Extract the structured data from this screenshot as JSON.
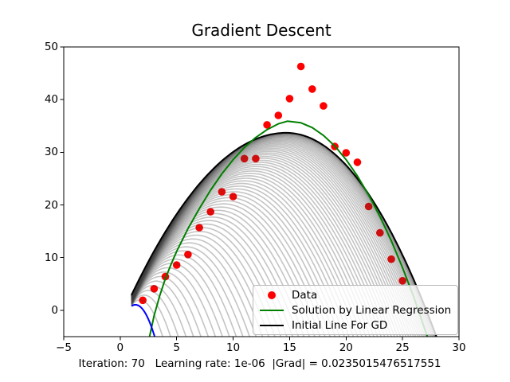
{
  "chart_data": {
    "type": "scatter",
    "title": "Gradient Descent",
    "xlabel": "Iteration: 70   Learning rate: 1e-06  |Grad| = 0.0235015476517551",
    "ylabel": "",
    "xlim": [
      -5,
      30
    ],
    "ylim": [
      -5,
      50
    ],
    "xticks": [
      -5,
      0,
      5,
      10,
      15,
      20,
      25,
      30
    ],
    "xtick_labels": [
      "−5",
      "0",
      "5",
      "10",
      "15",
      "20",
      "25",
      "30"
    ],
    "yticks": [
      0,
      10,
      20,
      30,
      40,
      50
    ],
    "ytick_labels": [
      "0",
      "10",
      "20",
      "30",
      "40",
      "50"
    ],
    "grid": false,
    "legend_position": "lower right",
    "scatter": {
      "name": "Data",
      "color": "#ff0000",
      "marker_size": 9.6,
      "points": [
        [
          2,
          1.9
        ],
        [
          3,
          4.1
        ],
        [
          4,
          6.4
        ],
        [
          5,
          8.6
        ],
        [
          6,
          10.6
        ],
        [
          7,
          15.7
        ],
        [
          8,
          18.7
        ],
        [
          9,
          22.5
        ],
        [
          10,
          21.6
        ],
        [
          11,
          28.8
        ],
        [
          12,
          28.8
        ],
        [
          13,
          35.2
        ],
        [
          14,
          37.0
        ],
        [
          15,
          40.2
        ],
        [
          16,
          46.3
        ],
        [
          17,
          42.0
        ],
        [
          18,
          38.8
        ],
        [
          19,
          31.1
        ],
        [
          20,
          29.9
        ],
        [
          21,
          28.1
        ],
        [
          22,
          19.7
        ],
        [
          23,
          14.7
        ],
        [
          24,
          9.7
        ],
        [
          25,
          5.6
        ]
      ]
    },
    "solution_line": {
      "name": "Solution by Linear Regression",
      "color": "#008000",
      "points": [
        [
          2.6,
          -5
        ],
        [
          3,
          -1
        ],
        [
          3.5,
          2.8
        ],
        [
          4,
          6
        ],
        [
          4.5,
          8.7
        ],
        [
          5,
          11.2
        ],
        [
          6,
          15.5
        ],
        [
          7,
          19.3
        ],
        [
          8,
          22.8
        ],
        [
          9,
          25.9
        ],
        [
          10,
          28.6
        ],
        [
          11,
          30.9
        ],
        [
          12,
          32.8
        ],
        [
          13,
          34.3
        ],
        [
          14,
          35.4
        ],
        [
          14.8,
          35.9
        ],
        [
          16,
          35.6
        ],
        [
          17,
          34.7
        ],
        [
          18,
          33.2
        ],
        [
          19,
          31.2
        ],
        [
          20,
          28.6
        ],
        [
          21,
          25.5
        ],
        [
          22,
          21.9
        ],
        [
          23,
          17.8
        ],
        [
          24,
          13.2
        ],
        [
          25,
          8.1
        ],
        [
          26,
          2.5
        ],
        [
          27.2,
          -5
        ]
      ]
    },
    "initial_line": {
      "name": "Initial Line For GD",
      "color": "#000000",
      "start": [
        1,
        2.9
      ],
      "peak": [
        14.7,
        33.7
      ],
      "end_x": 28
    },
    "current_line": {
      "color": "#0000ff",
      "start": [
        1,
        0.8
      ],
      "peak": [
        1.35,
        1.05
      ],
      "end_x": 3.05
    },
    "gd_iteration_fan": {
      "iterations": 70,
      "curve_count": 69,
      "color": "#3c3c3c",
      "opacity": 0.3,
      "pacing_power": 2
    },
    "legend": {
      "items": [
        {
          "label": "Data",
          "marker": "dot",
          "color": "#ff0000"
        },
        {
          "label": "Solution by Linear Regression",
          "marker": "line",
          "color": "#008000"
        },
        {
          "label": "Initial Line For GD",
          "marker": "line",
          "color": "#000000"
        }
      ]
    }
  }
}
